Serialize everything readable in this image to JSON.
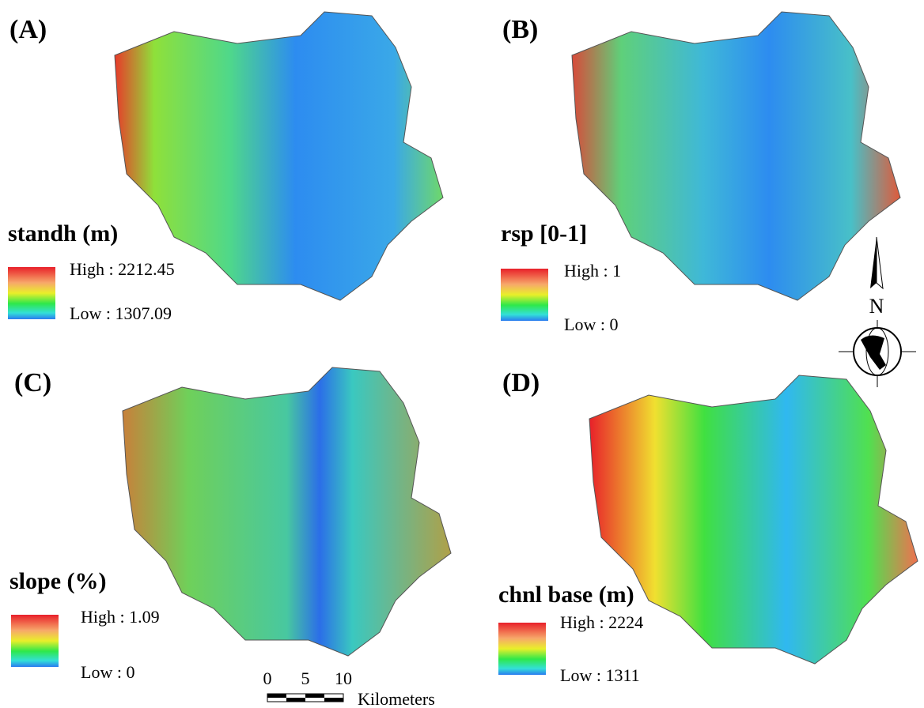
{
  "panels": [
    {
      "label": "(A)",
      "legend_title": "standh (m)",
      "high": "High : 2212.45",
      "low": "Low : 1307.09"
    },
    {
      "label": "(B)",
      "legend_title": "rsp [0-1]",
      "high": "High : 1",
      "low": "Low : 0"
    },
    {
      "label": "(C)",
      "legend_title": "slope (%)",
      "high": "High : 1.09",
      "low": "Low : 0"
    },
    {
      "label": "(D)",
      "legend_title": "chnl base (m)",
      "high": "High : 2224",
      "low": "Low : 1311"
    }
  ],
  "north": "N",
  "scale_bar": {
    "ticks": [
      "0",
      "5",
      "10"
    ],
    "unit": "Kilometers"
  }
}
